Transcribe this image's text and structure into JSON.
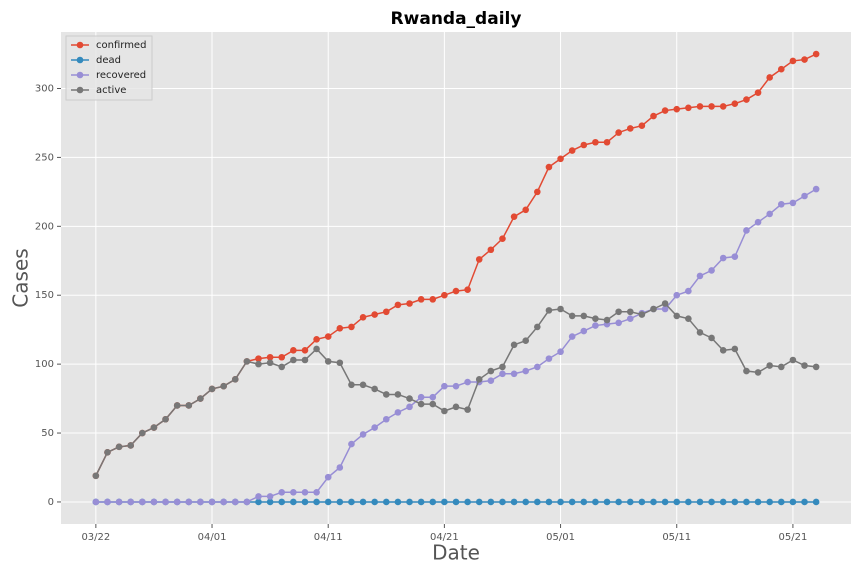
{
  "chart_data": {
    "type": "line",
    "title": "Rwanda_daily",
    "xlabel": "Date",
    "ylabel": "Cases",
    "x": [
      "03/22",
      "03/23",
      "03/24",
      "03/25",
      "03/26",
      "03/27",
      "03/28",
      "03/29",
      "03/30",
      "03/31",
      "04/01",
      "04/02",
      "04/03",
      "04/04",
      "04/05",
      "04/06",
      "04/07",
      "04/08",
      "04/09",
      "04/10",
      "04/11",
      "04/12",
      "04/13",
      "04/14",
      "04/15",
      "04/16",
      "04/17",
      "04/18",
      "04/19",
      "04/20",
      "04/21",
      "04/22",
      "04/23",
      "04/24",
      "04/25",
      "04/26",
      "04/27",
      "04/28",
      "04/29",
      "04/30",
      "05/01",
      "05/02",
      "05/03",
      "05/04",
      "05/05",
      "05/06",
      "05/07",
      "05/08",
      "05/09",
      "05/10",
      "05/11",
      "05/12",
      "05/13",
      "05/14",
      "05/15",
      "05/16",
      "05/17",
      "05/18",
      "05/19",
      "05/20",
      "05/21",
      "05/22",
      "05/23"
    ],
    "xticks": [
      "03/22",
      "04/01",
      "04/11",
      "04/21",
      "05/01",
      "05/11",
      "05/21"
    ],
    "ylim": [
      -16,
      341
    ],
    "yticks": [
      0,
      50,
      100,
      150,
      200,
      250,
      300
    ],
    "grid": true,
    "legend": "upper left",
    "series": [
      {
        "name": "confirmed",
        "color": "#E24A33",
        "values": [
          19,
          36,
          40,
          41,
          50,
          54,
          60,
          70,
          70,
          75,
          82,
          84,
          89,
          102,
          104,
          105,
          105,
          110,
          110,
          118,
          120,
          126,
          127,
          134,
          136,
          138,
          143,
          144,
          147,
          147,
          150,
          153,
          154,
          176,
          183,
          191,
          207,
          212,
          225,
          243,
          249,
          255,
          259,
          261,
          261,
          268,
          271,
          273,
          280,
          284,
          285,
          286,
          287,
          287,
          287,
          289,
          292,
          297,
          308,
          314,
          320,
          321,
          325
        ]
      },
      {
        "name": "dead",
        "color": "#348ABD",
        "values": [
          0,
          0,
          0,
          0,
          0,
          0,
          0,
          0,
          0,
          0,
          0,
          0,
          0,
          0,
          0,
          0,
          0,
          0,
          0,
          0,
          0,
          0,
          0,
          0,
          0,
          0,
          0,
          0,
          0,
          0,
          0,
          0,
          0,
          0,
          0,
          0,
          0,
          0,
          0,
          0,
          0,
          0,
          0,
          0,
          0,
          0,
          0,
          0,
          0,
          0,
          0,
          0,
          0,
          0,
          0,
          0,
          0,
          0,
          0,
          0,
          0,
          0,
          0
        ]
      },
      {
        "name": "recovered",
        "color": "#988ED5",
        "values": [
          0,
          0,
          0,
          0,
          0,
          0,
          0,
          0,
          0,
          0,
          0,
          0,
          0,
          0,
          4,
          4,
          7,
          7,
          7,
          7,
          18,
          25,
          42,
          49,
          54,
          60,
          65,
          69,
          76,
          76,
          84,
          84,
          87,
          87,
          88,
          93,
          93,
          95,
          98,
          104,
          109,
          120,
          124,
          128,
          129,
          130,
          133,
          137,
          140,
          140,
          150,
          153,
          164,
          168,
          177,
          178,
          197,
          203,
          209,
          216,
          217,
          222,
          227
        ]
      },
      {
        "name": "active",
        "color": "#777777",
        "values": [
          19,
          36,
          40,
          41,
          50,
          54,
          60,
          70,
          70,
          75,
          82,
          84,
          89,
          102,
          100,
          101,
          98,
          103,
          103,
          111,
          102,
          101,
          85,
          85,
          82,
          78,
          78,
          75,
          71,
          71,
          66,
          69,
          67,
          89,
          95,
          98,
          114,
          117,
          127,
          139,
          140,
          135,
          135,
          133,
          132,
          138,
          138,
          136,
          140,
          144,
          135,
          133,
          123,
          119,
          110,
          111,
          95,
          94,
          99,
          98,
          103,
          99,
          98
        ]
      }
    ]
  }
}
